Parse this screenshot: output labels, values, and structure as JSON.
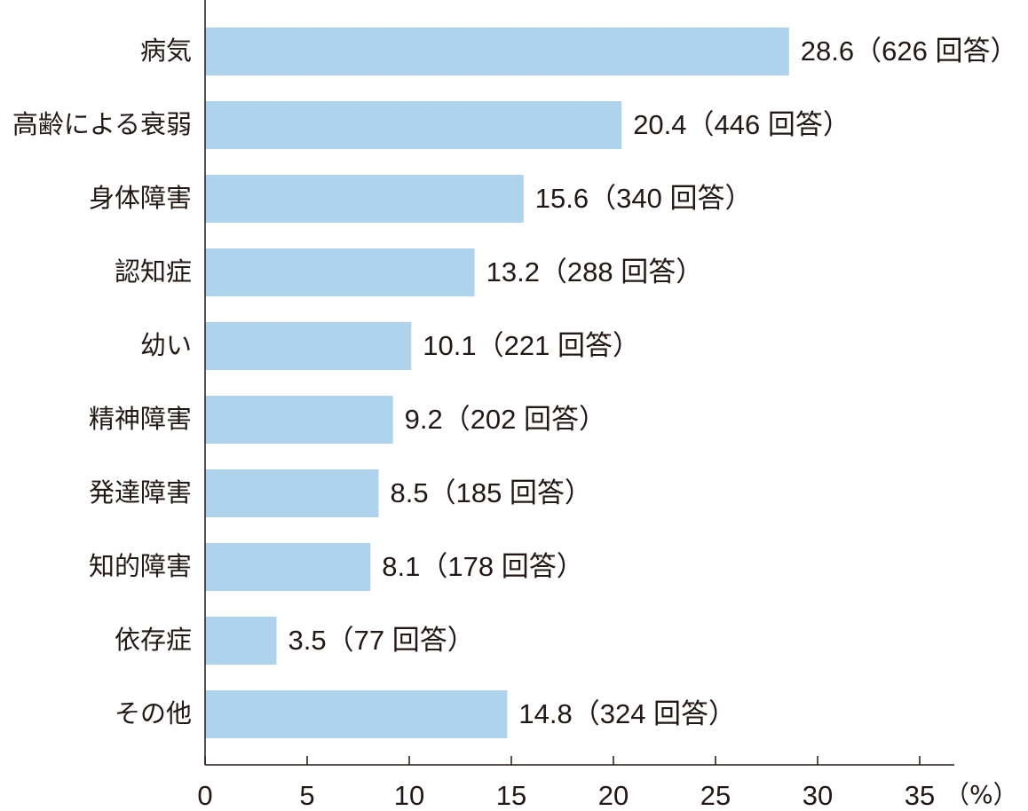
{
  "chart_data": {
    "type": "bar",
    "orientation": "horizontal",
    "categories": [
      "病気",
      "高齢による衰弱",
      "身体障害",
      "認知症",
      "幼い",
      "精神障害",
      "発達障害",
      "知的障害",
      "依存症",
      "その他"
    ],
    "values": [
      28.6,
      20.4,
      15.6,
      13.2,
      10.1,
      9.2,
      8.5,
      8.1,
      3.5,
      14.8
    ],
    "value_labels": [
      "28.6（626 回答）",
      "20.4（446 回答）",
      "15.6（340 回答）",
      "13.2（288 回答）",
      "10.1（221 回答）",
      "9.2（202 回答）",
      "8.5（185 回答）",
      "8.1（178 回答）",
      "3.5（77 回答）",
      "14.8（324 回答）"
    ],
    "xlim": [
      0,
      35
    ],
    "xticks": [
      0,
      5,
      10,
      15,
      20,
      25,
      30,
      35
    ],
    "xtick_labels": [
      "0",
      "5",
      "10",
      "15",
      "20",
      "25",
      "30",
      "35"
    ],
    "x_unit": "（%）",
    "grid": false,
    "bar_color": "#add4ec",
    "axis_color": "#231815"
  }
}
